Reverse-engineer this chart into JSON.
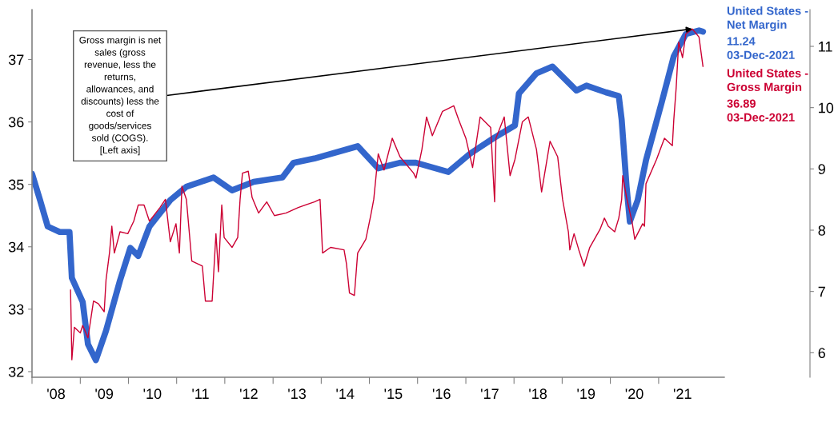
{
  "chart_data": {
    "type": "line",
    "xlim": [
      "2008-01-01",
      "2022-05-14"
    ],
    "xticks": [
      {
        "value": "2008-01-01",
        "label": null
      },
      {
        "value": "2008-07-01",
        "label": "'08"
      },
      {
        "value": "2009-01-01",
        "label": null
      },
      {
        "value": "2009-07-01",
        "label": "'09"
      },
      {
        "value": "2010-01-01",
        "label": null
      },
      {
        "value": "2010-07-01",
        "label": "'10"
      },
      {
        "value": "2011-01-01",
        "label": null
      },
      {
        "value": "2011-07-01",
        "label": "'11"
      },
      {
        "value": "2012-01-01",
        "label": null
      },
      {
        "value": "2012-07-01",
        "label": "'12"
      },
      {
        "value": "2013-01-01",
        "label": null
      },
      {
        "value": "2013-07-01",
        "label": "'13"
      },
      {
        "value": "2014-01-01",
        "label": null
      },
      {
        "value": "2014-07-01",
        "label": "'14"
      },
      {
        "value": "2015-01-01",
        "label": null
      },
      {
        "value": "2015-07-01",
        "label": "'15"
      },
      {
        "value": "2016-01-01",
        "label": null
      },
      {
        "value": "2016-07-01",
        "label": "'16"
      },
      {
        "value": "2017-01-01",
        "label": null
      },
      {
        "value": "2017-07-01",
        "label": "'17"
      },
      {
        "value": "2018-01-01",
        "label": null
      },
      {
        "value": "2018-07-01",
        "label": "'18"
      },
      {
        "value": "2019-01-01",
        "label": null
      },
      {
        "value": "2019-07-01",
        "label": "'19"
      },
      {
        "value": "2020-01-01",
        "label": null
      },
      {
        "value": "2020-07-01",
        "label": "'20"
      },
      {
        "value": "2021-01-01",
        "label": null
      },
      {
        "value": "2021-07-01",
        "label": "'21"
      }
    ],
    "ylim": [
      31.91,
      37.8
    ],
    "yticks": [
      32,
      33,
      34,
      35,
      36,
      37
    ],
    "y2lim": [
      5.6,
      11.6
    ],
    "y2ticks": [
      6,
      7,
      8,
      9,
      10,
      11
    ],
    "legend": "right",
    "series": [
      {
        "name": "United States -\nNet Margin",
        "color": "#3366cc",
        "axis": "y2",
        "x": [
          "2008-01-01",
          "2008-03-02",
          "2008-04-29",
          "2008-07-29",
          "2008-10-11",
          "2008-10-29",
          "2009-01-19",
          "2009-02-28",
          "2009-04-29",
          "2009-07-15",
          "2009-10-29",
          "2010-01-15",
          "2010-03-16",
          "2010-06-09",
          "2010-11-14",
          "2011-03-16",
          "2011-10-08",
          "2012-02-25",
          "2012-08-07",
          "2013-03-13",
          "2013-06-05",
          "2013-11-10",
          "2014-10-04",
          "2015-03-09",
          "2015-08-21",
          "2015-12-20",
          "2016-08-21",
          "2017-02-03",
          "2017-07-29",
          "2018-01-08",
          "2018-02-07",
          "2018-06-20",
          "2018-10-19",
          "2019-02-17",
          "2019-04-19",
          "2019-07-04",
          "2019-11-28",
          "2020-03-05",
          "2020-03-27",
          "2020-05-03",
          "2020-05-28",
          "2020-07-26",
          "2020-09-27",
          "2021-01-26",
          "2021-04-26",
          "2021-07-26",
          "2021-11-03",
          "2021-12-03"
        ],
        "values": [
          8.92,
          8.49,
          8.06,
          7.97,
          7.97,
          7.22,
          6.83,
          6.14,
          5.88,
          6.36,
          7.18,
          7.71,
          7.58,
          8.06,
          8.49,
          8.71,
          8.86,
          8.65,
          8.79,
          8.86,
          9.1,
          9.17,
          9.37,
          9.01,
          9.1,
          9.1,
          8.95,
          9.25,
          9.5,
          9.71,
          10.23,
          10.56,
          10.67,
          10.41,
          10.28,
          10.36,
          10.25,
          10.19,
          9.8,
          8.71,
          8.14,
          8.49,
          9.14,
          10.1,
          10.84,
          11.2,
          11.26,
          11.24
        ]
      },
      {
        "name": "United States -\nGross Margin",
        "color": "#cc0033",
        "axis": "y",
        "x": [
          "2008-10-19",
          "2008-10-29",
          "2008-11-17",
          "2009-01-01",
          "2009-01-19",
          "2009-02-28",
          "2009-04-11",
          "2009-05-17",
          "2009-07-01",
          "2009-07-15",
          "2009-08-10",
          "2009-08-28",
          "2009-09-16",
          "2009-10-29",
          "2009-12-27",
          "2010-02-10",
          "2010-03-16",
          "2010-04-29",
          "2010-06-09",
          "2010-08-28",
          "2010-10-08",
          "2010-11-14",
          "2010-12-27",
          "2011-01-22",
          "2011-02-10",
          "2011-03-16",
          "2011-04-26",
          "2011-07-15",
          "2011-08-07",
          "2011-09-27",
          "2011-10-26",
          "2011-11-14",
          "2011-12-09",
          "2011-12-27",
          "2012-02-25",
          "2012-04-08",
          "2012-04-26",
          "2012-05-14",
          "2012-06-27",
          "2012-07-26",
          "2012-09-13",
          "2012-11-14",
          "2013-01-11",
          "2013-04-08",
          "2013-07-11",
          "2013-11-10",
          "2013-12-23",
          "2014-01-11",
          "2014-03-13",
          "2014-06-23",
          "2014-07-11",
          "2014-08-03",
          "2014-09-09",
          "2014-10-04",
          "2014-12-05",
          "2015-01-11",
          "2015-02-03",
          "2015-03-09",
          "2015-04-22",
          "2015-06-23",
          "2015-08-21",
          "2015-12-02",
          "2015-12-20",
          "2016-02-03",
          "2016-03-09",
          "2016-04-22",
          "2016-07-08",
          "2016-10-01",
          "2016-11-07",
          "2017-01-01",
          "2017-02-21",
          "2017-04-19",
          "2017-07-08",
          "2017-08-07",
          "2017-08-17",
          "2017-10-19",
          "2017-12-02",
          "2018-01-08",
          "2018-03-05",
          "2018-04-19",
          "2018-06-20",
          "2018-07-29",
          "2018-10-01",
          "2018-11-28",
          "2019-01-04",
          "2019-02-17",
          "2019-02-28",
          "2019-04-01",
          "2019-05-07",
          "2019-06-16",
          "2019-07-29",
          "2019-10-15",
          "2019-11-17",
          "2019-12-16",
          "2020-02-03",
          "2020-03-05",
          "2020-03-27",
          "2020-04-04",
          "2020-05-03",
          "2020-06-16",
          "2020-07-04",
          "2020-09-02",
          "2020-09-16",
          "2020-09-27",
          "2020-12-16",
          "2021-02-14",
          "2021-04-15",
          "2021-04-26",
          "2021-05-14",
          "2021-06-02",
          "2021-07-01",
          "2021-07-26",
          "2021-09-13",
          "2021-11-03",
          "2021-12-03"
        ],
        "values": [
          33.31,
          32.19,
          32.71,
          32.62,
          32.74,
          32.54,
          33.13,
          33.09,
          32.96,
          33.47,
          33.9,
          34.33,
          33.9,
          34.24,
          34.21,
          34.41,
          34.67,
          34.67,
          34.41,
          34.63,
          34.76,
          34.08,
          34.37,
          33.9,
          34.97,
          34.76,
          33.77,
          33.69,
          33.13,
          33.13,
          34.21,
          33.6,
          34.67,
          34.15,
          33.99,
          34.15,
          34.76,
          35.18,
          35.21,
          34.79,
          34.54,
          34.72,
          34.5,
          34.54,
          34.63,
          34.72,
          34.76,
          33.9,
          33.99,
          33.95,
          33.73,
          33.26,
          33.22,
          33.9,
          34.12,
          34.5,
          34.76,
          35.49,
          35.23,
          35.74,
          35.44,
          35.18,
          35.1,
          35.56,
          36.08,
          35.78,
          36.17,
          36.26,
          36.04,
          35.74,
          35.27,
          36.08,
          35.91,
          34.72,
          35.74,
          36.08,
          35.14,
          35.4,
          36.0,
          36.08,
          35.56,
          34.88,
          35.69,
          35.44,
          34.76,
          34.24,
          33.95,
          34.21,
          33.95,
          33.69,
          33.99,
          34.28,
          34.46,
          34.33,
          34.24,
          34.46,
          34.76,
          35.14,
          34.79,
          34.37,
          34.12,
          34.37,
          34.33,
          35.01,
          35.4,
          35.74,
          35.62,
          36.04,
          36.55,
          37.28,
          37.03,
          37.41,
          37.49,
          37.36,
          36.89
        ]
      }
    ],
    "annotations": [
      "Gross margin is net\nsales (gross\nrevenue, less the\nreturns,\nallowances, and\ndiscounts) less the\ncost of\ngoods/services\nsold (COGS).\n[Left axis]",
      "11.24\n03-Dec-2021",
      "36.89\n03-Dec-2021"
    ]
  }
}
